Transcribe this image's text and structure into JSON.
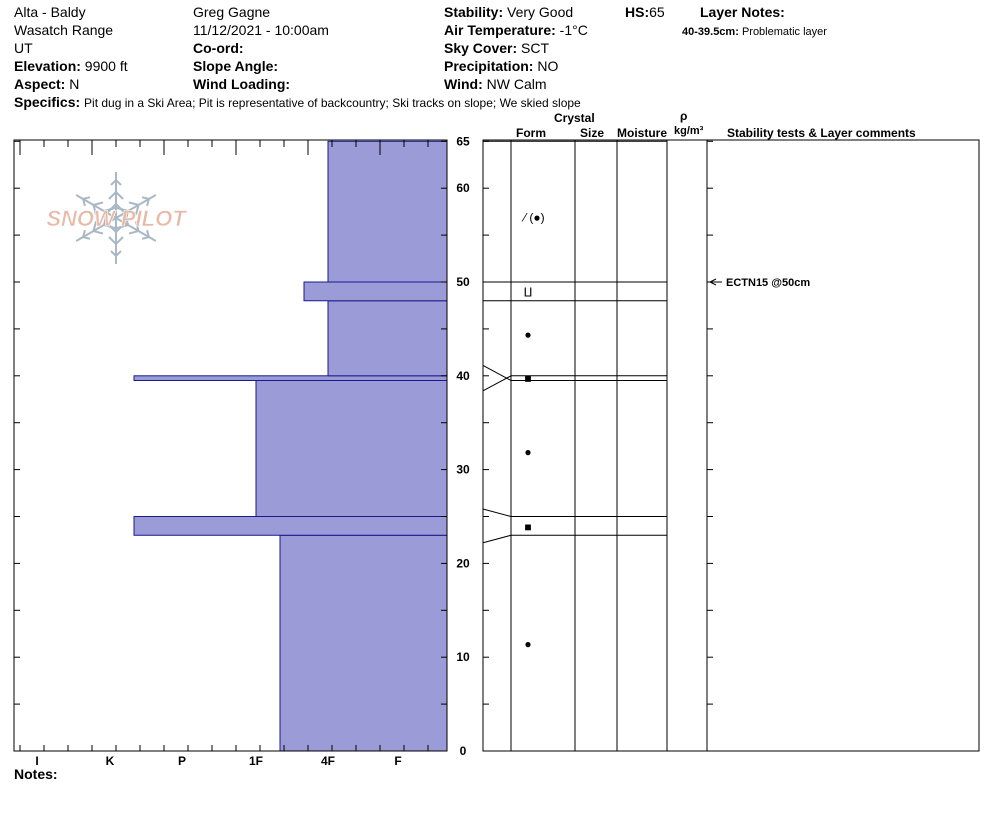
{
  "header": {
    "location": "Alta - Baldy",
    "range": "Wasatch Range",
    "state": "UT",
    "elevation_label": "Elevation:",
    "elevation_value": "9900 ft",
    "aspect_label": "Aspect:",
    "aspect_value": "N",
    "observer": "Greg Gagne",
    "datetime": "11/12/2021 - 10:00am",
    "coord_label": "Co-ord:",
    "slope_label": "Slope Angle:",
    "wind_loading_label": "Wind Loading:",
    "stability_label": "Stability:",
    "stability_value": "Very Good",
    "air_temp_label": "Air Temperature:",
    "air_temp_value": "-1°C",
    "sky_label": "Sky Cover:",
    "sky_value": "SCT",
    "precip_label": "Precipitation:",
    "precip_value": "NO",
    "wind_label": "Wind:",
    "wind_value": "NW Calm",
    "hs_label": "HS:",
    "hs_value": "65",
    "layer_notes_label": "Layer Notes:",
    "layer_note_depth": "40-39.5cm:",
    "layer_note_text": "Problematic layer",
    "specifics_label": "Specifics:",
    "specifics_value": "Pit dug in a Ski Area;  Pit is representative of backcountry;  Ski tracks on slope;  We skied slope",
    "notes_label": "Notes:"
  },
  "logo": {
    "text": "SNOW PILOT",
    "color": "#e8b9a6",
    "flake_color": "#a9b8c4"
  },
  "colors": {
    "hardness_fill": "#9b9bd7",
    "hardness_stroke": "#1a1a8c"
  },
  "columns": {
    "crystal": "Crystal",
    "form": "Form",
    "size": "Size",
    "moisture": "Moisture",
    "rho": "ρ",
    "density_unit": "kg/m³",
    "comments": "Stability tests & Layer comments"
  },
  "chart_data": {
    "type": "bar",
    "xlabel": "",
    "ylabel": "",
    "ylim": [
      0,
      65
    ],
    "y_ticks": [
      0,
      10,
      20,
      30,
      40,
      50,
      60,
      65
    ],
    "hardness_scale": [
      "I",
      "K",
      "P",
      "1F",
      "4F",
      "F"
    ],
    "layers": [
      {
        "bottom": 0,
        "top": 23,
        "hardness": "1F+"
      },
      {
        "bottom": 23,
        "top": 25,
        "hardness": "K+"
      },
      {
        "bottom": 25,
        "top": 39.5,
        "hardness": "1F"
      },
      {
        "bottom": 39.5,
        "top": 40,
        "hardness": "K+"
      },
      {
        "bottom": 40,
        "top": 48,
        "hardness": "4F"
      },
      {
        "bottom": 48,
        "top": 50,
        "hardness": "4F-"
      },
      {
        "bottom": 50,
        "top": 65,
        "hardness": "4F"
      }
    ],
    "grain_forms": [
      {
        "depth": 57,
        "symbol": "⁄ (●)"
      },
      {
        "depth": 49,
        "symbol": "ⵡ"
      },
      {
        "depth": 44.5,
        "symbol": "●"
      },
      {
        "depth": 39.8,
        "symbol": "■"
      },
      {
        "depth": 32,
        "symbol": "●"
      },
      {
        "depth": 24,
        "symbol": "■"
      },
      {
        "depth": 11.5,
        "symbol": "●"
      }
    ],
    "stability_tests": [
      {
        "depth": 50,
        "label": "ECTN15 @50cm"
      }
    ]
  }
}
